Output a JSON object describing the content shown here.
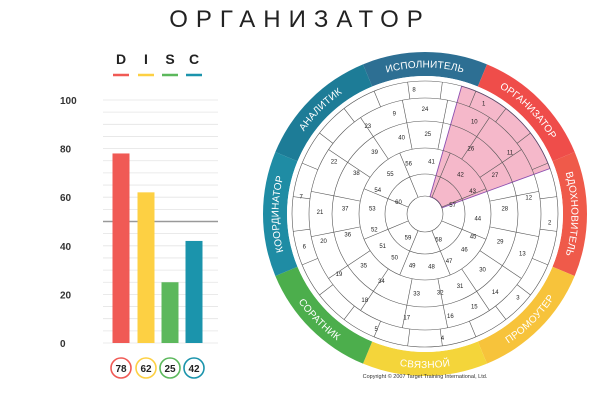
{
  "title": "ОРГАНИЗАТОР",
  "copyright": "Copyright © 2007 Target Training International, Ltd.",
  "chart_data": [
    {
      "type": "bar",
      "categories": [
        "D",
        "I",
        "S",
        "C"
      ],
      "values": [
        78,
        62,
        25,
        42
      ],
      "value_labels": [
        "78",
        "62",
        "25",
        "42"
      ],
      "colors": [
        "#f05a55",
        "#fdd043",
        "#5cb85c",
        "#1b94ac"
      ],
      "yticks": [
        "0",
        "20",
        "40",
        "60",
        "80",
        "100"
      ],
      "ylim": [
        0,
        100
      ],
      "reference_line": 50
    },
    {
      "type": "wheel",
      "segments": [
        {
          "label": "ИСПОЛНИТЕЛЬ",
          "color": "#2d6f93"
        },
        {
          "label": "ОРГАНИЗАТОР",
          "color": "#ef4d4a"
        },
        {
          "label": "ВДОХНОВИТЕЛЬ",
          "color": "#ef5a4a"
        },
        {
          "label": "ПРОМОУТЕР",
          "color": "#f7c33b"
        },
        {
          "label": "СВЯЗНОЙ",
          "color": "#f4d53a"
        },
        {
          "label": "СОРАТНИК",
          "color": "#4cae4c"
        },
        {
          "label": "КООРДИНАТОР",
          "color": "#1f8ca4"
        },
        {
          "label": "АНАЛИТИК",
          "color": "#1d7c97"
        }
      ],
      "cells": [
        {
          "label": "8",
          "angle": -95,
          "ring": 4
        },
        {
          "label": "1",
          "angle": -62,
          "ring": 4
        },
        {
          "label": "2",
          "angle": 4,
          "ring": 4
        },
        {
          "label": "3",
          "angle": 42,
          "ring": 4
        },
        {
          "label": "4",
          "angle": 82,
          "ring": 4
        },
        {
          "label": "5",
          "angle": 113,
          "ring": 4
        },
        {
          "label": "6",
          "angle": 165,
          "ring": 4
        },
        {
          "label": "7",
          "angle": -172,
          "ring": 4
        },
        {
          "label": "24",
          "angle": -90,
          "ring": 3
        },
        {
          "label": "10",
          "angle": -62,
          "ring": 3
        },
        {
          "label": "11",
          "angle": -36,
          "ring": 3
        },
        {
          "label": "12",
          "angle": -9,
          "ring": 3
        },
        {
          "label": "13",
          "angle": 22,
          "ring": 3
        },
        {
          "label": "14",
          "angle": 48,
          "ring": 3
        },
        {
          "label": "15",
          "angle": 62,
          "ring": 3
        },
        {
          "label": "16",
          "angle": 76,
          "ring": 3
        },
        {
          "label": "17",
          "angle": 100,
          "ring": 3
        },
        {
          "label": "18",
          "angle": 125,
          "ring": 3
        },
        {
          "label": "19",
          "angle": 145,
          "ring": 3
        },
        {
          "label": "20",
          "angle": 165,
          "ring": 3
        },
        {
          "label": "21",
          "angle": -179,
          "ring": 3
        },
        {
          "label": "22",
          "angle": -150,
          "ring": 3
        },
        {
          "label": "23",
          "angle": -123,
          "ring": 3
        },
        {
          "label": "9",
          "angle": -107,
          "ring": 3
        },
        {
          "label": "40",
          "angle": -107,
          "ring": 2
        },
        {
          "label": "25",
          "angle": -88,
          "ring": 2
        },
        {
          "label": "26",
          "angle": -55,
          "ring": 2
        },
        {
          "label": "27",
          "angle": -29,
          "ring": 2
        },
        {
          "label": "28",
          "angle": -4,
          "ring": 2
        },
        {
          "label": "29",
          "angle": 20,
          "ring": 2
        },
        {
          "label": "30",
          "angle": 44,
          "ring": 2
        },
        {
          "label": "31",
          "angle": 64,
          "ring": 2
        },
        {
          "label": "32",
          "angle": 79,
          "ring": 2
        },
        {
          "label": "33",
          "angle": 96,
          "ring": 2
        },
        {
          "label": "34",
          "angle": 123,
          "ring": 2
        },
        {
          "label": "35",
          "angle": 140,
          "ring": 2
        },
        {
          "label": "36",
          "angle": 165,
          "ring": 2
        },
        {
          "label": "37",
          "angle": -176,
          "ring": 2
        },
        {
          "label": "38",
          "angle": -149,
          "ring": 2
        },
        {
          "label": "39",
          "angle": -129,
          "ring": 2
        },
        {
          "label": "56",
          "angle": -108,
          "ring": 1
        },
        {
          "label": "41",
          "angle": -83,
          "ring": 1
        },
        {
          "label": "42",
          "angle": -48,
          "ring": 1
        },
        {
          "label": "43",
          "angle": -26,
          "ring": 1
        },
        {
          "label": "44",
          "angle": 5,
          "ring": 1
        },
        {
          "label": "45",
          "angle": 25,
          "ring": 1
        },
        {
          "label": "46",
          "angle": 42,
          "ring": 1
        },
        {
          "label": "47",
          "angle": 63,
          "ring": 1
        },
        {
          "label": "48",
          "angle": 83,
          "ring": 1
        },
        {
          "label": "49",
          "angle": 104,
          "ring": 1
        },
        {
          "label": "50",
          "angle": 125,
          "ring": 1
        },
        {
          "label": "51",
          "angle": 143,
          "ring": 1
        },
        {
          "label": "52",
          "angle": 163,
          "ring": 1
        },
        {
          "label": "53",
          "angle": -174,
          "ring": 1
        },
        {
          "label": "54",
          "angle": -153,
          "ring": 1
        },
        {
          "label": "55",
          "angle": -131,
          "ring": 1
        },
        {
          "label": "57",
          "angle": -18,
          "ring": 0
        },
        {
          "label": "58",
          "angle": 62,
          "ring": 0
        },
        {
          "label": "59",
          "angle": 126,
          "ring": 0
        },
        {
          "label": "60",
          "angle": -156,
          "ring": 0
        }
      ],
      "highlight_cells": [
        "1",
        "10",
        "11",
        "26",
        "27",
        "42",
        "43",
        "57"
      ],
      "highlight_color": "#e8628a"
    }
  ]
}
